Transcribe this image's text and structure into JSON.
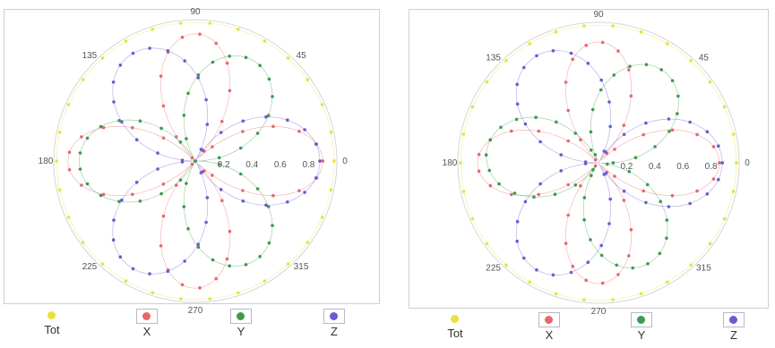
{
  "chart_data": [
    {
      "type": "polar-scatter",
      "panel": "left",
      "radial_ticks": [
        "0.2",
        "0.4",
        "0.6",
        "0.8"
      ],
      "radial_range": [
        0,
        1
      ],
      "angle_ticks": [
        "0",
        "45",
        "90",
        "135",
        "180",
        "225",
        "270",
        "315"
      ],
      "legend": [
        "Tot",
        "X",
        "Y",
        "Z"
      ],
      "colors": {
        "Tot": "#e8e23a",
        "X": "#e8686a",
        "Y": "#3f9a4e",
        "Z": "#6a5ccf"
      },
      "series": [
        {
          "name": "Tot",
          "r_const": 0.98
        },
        {
          "name": "X",
          "lobes": 4,
          "amp": 0.9,
          "phase_deg": 90
        },
        {
          "name": "Y",
          "lobes": 3,
          "amp": 0.82,
          "phase_deg": 60
        },
        {
          "name": "Z",
          "lobes": 3,
          "amp": 0.88,
          "phase_deg": 0
        }
      ]
    },
    {
      "type": "polar-scatter",
      "panel": "right",
      "radial_ticks": [
        "0.2",
        "0.4",
        "0.6",
        "0.8"
      ],
      "radial_range": [
        0,
        1
      ],
      "angle_ticks": [
        "0",
        "45",
        "90",
        "135",
        "180",
        "225",
        "270",
        "315"
      ],
      "legend": [
        "Tot",
        "X",
        "Y",
        "Z"
      ],
      "colors": {
        "Tot": "#e8e23a",
        "X": "#e8686a",
        "Y": "#3f9a4e",
        "Z": "#6a5ccf"
      },
      "series": [
        {
          "name": "Tot",
          "r_const": 0.98
        },
        {
          "name": "X",
          "lobes": 4,
          "amp": 0.86,
          "phase_deg": 90
        },
        {
          "name": "Y",
          "lobes": 3,
          "amp": 0.8,
          "phase_deg": 55
        },
        {
          "name": "Z",
          "lobes": 3,
          "amp": 0.88,
          "phase_deg": 0
        }
      ]
    }
  ]
}
